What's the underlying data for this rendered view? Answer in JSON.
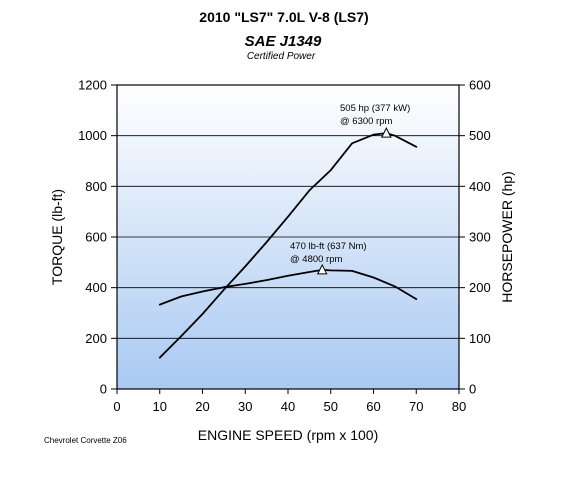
{
  "chart_data": {
    "type": "line",
    "title": "2010 \"LS7\" 7.0L V-8 (LS7)",
    "logo_text": "SAE J1349",
    "subtitle": "Certified Power",
    "xlabel": "ENGINE SPEED (rpm x 100)",
    "ylabel_left": "TORQUE (lb-ft)",
    "ylabel_right": "HORSEPOWER (hp)",
    "xlim": [
      0,
      80
    ],
    "ylim_left": [
      0,
      1200
    ],
    "ylim_right": [
      0,
      600
    ],
    "x_ticks": [
      "0",
      "10",
      "20",
      "30",
      "40",
      "50",
      "60",
      "70",
      "80"
    ],
    "y_ticks_left": [
      "0",
      "200",
      "400",
      "600",
      "800",
      "1000",
      "1200"
    ],
    "y_ticks_right": [
      "0",
      "100",
      "200",
      "300",
      "400",
      "500",
      "600"
    ],
    "grid": true,
    "background": "gradient light blue",
    "series": [
      {
        "axis": "left",
        "color": "#000000",
        "x": [
          10,
          15,
          20,
          25,
          30,
          35,
          40,
          45,
          48,
          50,
          55,
          60,
          65,
          70
        ],
        "values": [
          333,
          365,
          385,
          402,
          415,
          430,
          447,
          462,
          470,
          468,
          466,
          440,
          405,
          355
        ]
      },
      {
        "axis": "right",
        "color": "#000000",
        "x": [
          10,
          15,
          20,
          25,
          30,
          35,
          40,
          45,
          50,
          55,
          60,
          63,
          65,
          70
        ],
        "values": [
          62,
          104,
          148,
          196,
          242,
          290,
          340,
          392,
          432,
          485,
          502,
          505,
          500,
          478
        ]
      }
    ],
    "annotations": [
      {
        "line1": "470 lb-ft (637 Nm)",
        "line2": "@ 4800 rpm",
        "x": 48,
        "y": 470,
        "axis": "left"
      },
      {
        "line1": "505 hp (377 kW)",
        "line2": "@ 6300 rpm",
        "x": 63,
        "y": 505,
        "axis": "right"
      }
    ]
  },
  "footnote": "Chevrolet Corvette Z06"
}
